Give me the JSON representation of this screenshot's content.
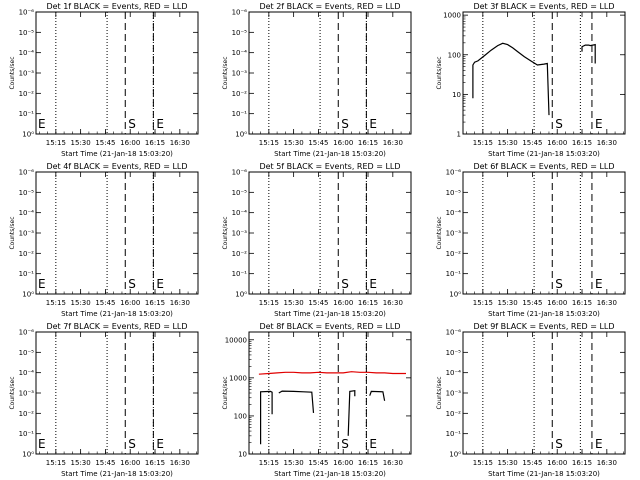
{
  "window": {
    "start_time_label": "Start Time (21-Jan-18 15:03:20)",
    "ylabel": "Counts/sec"
  },
  "chart_data": [
    {
      "type": "line",
      "title": "Det 1f BLACK = Events, RED = LLD",
      "xlabel": "Start Time (21-Jan-18 15:03:20)",
      "ylabel": "Counts/sec",
      "x_ticks": [
        "15:15",
        "15:30",
        "15:45",
        "16:00",
        "16:15",
        "16:30"
      ],
      "yscale": "log",
      "y_ticks": [
        "10⁰",
        "10⁻¹",
        "10⁻²",
        "10⁻³",
        "10⁻⁴",
        "10⁻⁵",
        "10⁻⁶"
      ],
      "markers": [
        {
          "label": "S",
          "x": "15:57"
        },
        {
          "label": "E",
          "x": "16:14"
        },
        {
          "label": "E",
          "x": "15:04"
        }
      ],
      "dotted_lines": [
        "15:15",
        "15:46",
        "16:14"
      ],
      "series": []
    },
    {
      "type": "line",
      "title": "Det 2f BLACK = Events, RED = LLD",
      "xlabel": "Start Time (21-Jan-18 15:03:20)",
      "ylabel": "Counts/sec",
      "x_ticks": [
        "15:15",
        "15:30",
        "15:45",
        "16:00",
        "16:15",
        "16:30"
      ],
      "yscale": "log",
      "y_ticks": [
        "10⁰",
        "10⁻¹",
        "10⁻²",
        "10⁻³",
        "10⁻⁴",
        "10⁻⁵",
        "10⁻⁶"
      ],
      "markers": [
        {
          "label": "S",
          "x": "15:57"
        },
        {
          "label": "E",
          "x": "16:14"
        }
      ],
      "dotted_lines": [
        "15:15",
        "15:46",
        "16:14"
      ],
      "series": []
    },
    {
      "type": "line",
      "title": "Det 3f BLACK = Events, RED = LLD",
      "xlabel": "Start Time (21-Jan-18 15:03:20)",
      "ylabel": "Counts/sec",
      "x_ticks": [
        "15:15",
        "15:30",
        "15:45",
        "16:00",
        "16:15",
        "16:30"
      ],
      "yscale": "log",
      "y_ticks": [
        "1",
        "10",
        "100",
        "1000"
      ],
      "ylim": [
        1,
        1200
      ],
      "markers": [
        {
          "label": "S",
          "x": "15:57"
        },
        {
          "label": "E",
          "x": "16:21"
        }
      ],
      "dotted_lines": [
        "15:15",
        "15:46",
        "16:14"
      ],
      "series": [
        {
          "color": "#000000",
          "segments": [
            [
              [
                "15:09",
                8
              ],
              [
                "15:09",
                55
              ],
              [
                "15:10",
                65
              ],
              [
                "15:12",
                70
              ],
              [
                "15:16",
                95
              ],
              [
                "15:20",
                130
              ],
              [
                "15:24",
                170
              ],
              [
                "15:27",
                195
              ],
              [
                "15:30",
                180
              ],
              [
                "15:33",
                150
              ],
              [
                "15:36",
                120
              ],
              [
                "15:40",
                90
              ],
              [
                "15:44",
                70
              ],
              [
                "15:48",
                55
              ],
              [
                "15:52",
                58
              ],
              [
                "15:54",
                60
              ],
              [
                "15:55",
                3
              ]
            ],
            [
              [
                "16:15",
                120
              ],
              [
                "16:15",
                160
              ],
              [
                "16:17",
                175
              ],
              [
                "16:19",
                175
              ],
              [
                "16:20",
                170
              ],
              [
                "16:23",
                180
              ],
              [
                "16:23",
                60
              ]
            ]
          ]
        }
      ]
    },
    {
      "type": "line",
      "title": "Det 4f BLACK = Events, RED = LLD",
      "xlabel": "Start Time (21-Jan-18 15:03:20)",
      "ylabel": "Counts/sec",
      "x_ticks": [
        "15:15",
        "15:30",
        "15:45",
        "16:00",
        "16:15",
        "16:30"
      ],
      "yscale": "log",
      "y_ticks": [
        "10⁰",
        "10⁻¹",
        "10⁻²",
        "10⁻³",
        "10⁻⁴",
        "10⁻⁵",
        "10⁻⁶"
      ],
      "markers": [
        {
          "label": "S",
          "x": "15:57"
        },
        {
          "label": "E",
          "x": "16:14"
        },
        {
          "label": "E",
          "x": "15:04"
        }
      ],
      "dotted_lines": [
        "15:15",
        "15:46",
        "16:14"
      ],
      "series": []
    },
    {
      "type": "line",
      "title": "Det 5f BLACK = Events, RED = LLD",
      "xlabel": "Start Time (21-Jan-18 15:03:20)",
      "ylabel": "Counts/sec",
      "x_ticks": [
        "15:15",
        "15:30",
        "15:45",
        "16:00",
        "16:15",
        "16:30"
      ],
      "yscale": "log",
      "y_ticks": [
        "10⁰",
        "10⁻¹",
        "10⁻²",
        "10⁻³",
        "10⁻⁴",
        "10⁻⁵",
        "10⁻⁶"
      ],
      "markers": [
        {
          "label": "S",
          "x": "15:57"
        },
        {
          "label": "E",
          "x": "16:14"
        }
      ],
      "dotted_lines": [
        "15:15",
        "15:46",
        "16:14"
      ],
      "series": []
    },
    {
      "type": "line",
      "title": "Det 6f BLACK = Events, RED = LLD",
      "xlabel": "Start Time (21-Jan-18 15:03:20)",
      "ylabel": "Counts/sec",
      "x_ticks": [
        "15:15",
        "15:30",
        "15:45",
        "16:00",
        "16:15",
        "16:30"
      ],
      "yscale": "log",
      "y_ticks": [
        "10⁰",
        "10⁻¹",
        "10⁻²",
        "10⁻³",
        "10⁻⁴",
        "10⁻⁵",
        "10⁻⁶"
      ],
      "markers": [
        {
          "label": "S",
          "x": "15:57"
        },
        {
          "label": "E",
          "x": "16:21"
        }
      ],
      "dotted_lines": [
        "15:15",
        "15:46",
        "16:14"
      ],
      "series": []
    },
    {
      "type": "line",
      "title": "Det 7f BLACK = Events, RED = LLD",
      "xlabel": "Start Time (21-Jan-18 15:03:20)",
      "ylabel": "Counts/sec",
      "x_ticks": [
        "15:15",
        "15:30",
        "15:45",
        "16:00",
        "16:15",
        "16:30"
      ],
      "yscale": "log",
      "y_ticks": [
        "10⁰",
        "10⁻¹",
        "10⁻²",
        "10⁻³",
        "10⁻⁴",
        "10⁻⁵",
        "10⁻⁶"
      ],
      "markers": [
        {
          "label": "S",
          "x": "15:57"
        },
        {
          "label": "E",
          "x": "16:14"
        },
        {
          "label": "E",
          "x": "15:04"
        }
      ],
      "dotted_lines": [
        "15:15",
        "15:46",
        "16:14"
      ],
      "series": []
    },
    {
      "type": "line",
      "title": "Det 8f BLACK = Events, RED = LLD",
      "xlabel": "Start Time (21-Jan-18 15:03:20)",
      "ylabel": "Counts/sec",
      "x_ticks": [
        "15:15",
        "15:30",
        "15:45",
        "16:00",
        "16:15",
        "16:30"
      ],
      "yscale": "log",
      "y_ticks": [
        "10",
        "100",
        "1000",
        "10000"
      ],
      "ylim": [
        10,
        16000
      ],
      "markers": [
        {
          "label": "S",
          "x": "15:57"
        },
        {
          "label": "E",
          "x": "16:14"
        }
      ],
      "dotted_lines": [
        "15:15",
        "15:46",
        "16:14"
      ],
      "series": [
        {
          "color": "#e00000",
          "segments": [
            [
              [
                "15:09",
                1250
              ],
              [
                "15:15",
                1300
              ],
              [
                "15:20",
                1350
              ],
              [
                "15:25",
                1400
              ],
              [
                "15:30",
                1400
              ],
              [
                "15:35",
                1350
              ],
              [
                "15:40",
                1350
              ],
              [
                "15:45",
                1400
              ],
              [
                "15:50",
                1350
              ],
              [
                "15:55",
                1350
              ],
              [
                "16:00",
                1350
              ],
              [
                "16:05",
                1450
              ],
              [
                "16:10",
                1400
              ],
              [
                "16:15",
                1400
              ],
              [
                "16:20",
                1350
              ],
              [
                "16:25",
                1350
              ],
              [
                "16:30",
                1300
              ],
              [
                "16:38",
                1300
              ]
            ]
          ]
        },
        {
          "color": "#000000",
          "segments": [
            [
              [
                "15:10",
                18
              ],
              [
                "15:10",
                430
              ],
              [
                "15:16",
                440
              ],
              [
                "15:17",
                420
              ],
              [
                "15:17",
                110
              ]
            ],
            [
              [
                "15:21",
                400
              ],
              [
                "15:23",
                450
              ],
              [
                "15:30",
                440
              ],
              [
                "15:36",
                430
              ],
              [
                "15:41",
                420
              ],
              [
                "15:42",
                120
              ]
            ],
            [
              [
                "16:03",
                30
              ],
              [
                "16:04",
                440
              ],
              [
                "16:07",
                460
              ],
              [
                "16:07",
                330
              ]
            ],
            [
              [
                "16:16",
                340
              ],
              [
                "16:17",
                440
              ],
              [
                "16:24",
                430
              ],
              [
                "16:25",
                250
              ]
            ]
          ]
        }
      ]
    },
    {
      "type": "line",
      "title": "Det 9f BLACK = Events, RED = LLD",
      "xlabel": "Start Time (21-Jan-18 15:03:20)",
      "ylabel": "Counts/sec",
      "x_ticks": [
        "15:15",
        "15:30",
        "15:45",
        "16:00",
        "16:15",
        "16:30"
      ],
      "yscale": "log",
      "y_ticks": [
        "10⁰",
        "10⁻¹",
        "10⁻²",
        "10⁻³",
        "10⁻⁴",
        "10⁻⁵",
        "10⁻⁶"
      ],
      "markers": [
        {
          "label": "S",
          "x": "15:57"
        },
        {
          "label": "E",
          "x": "16:21"
        }
      ],
      "dotted_lines": [
        "15:15",
        "15:46",
        "16:14"
      ],
      "series": []
    }
  ]
}
